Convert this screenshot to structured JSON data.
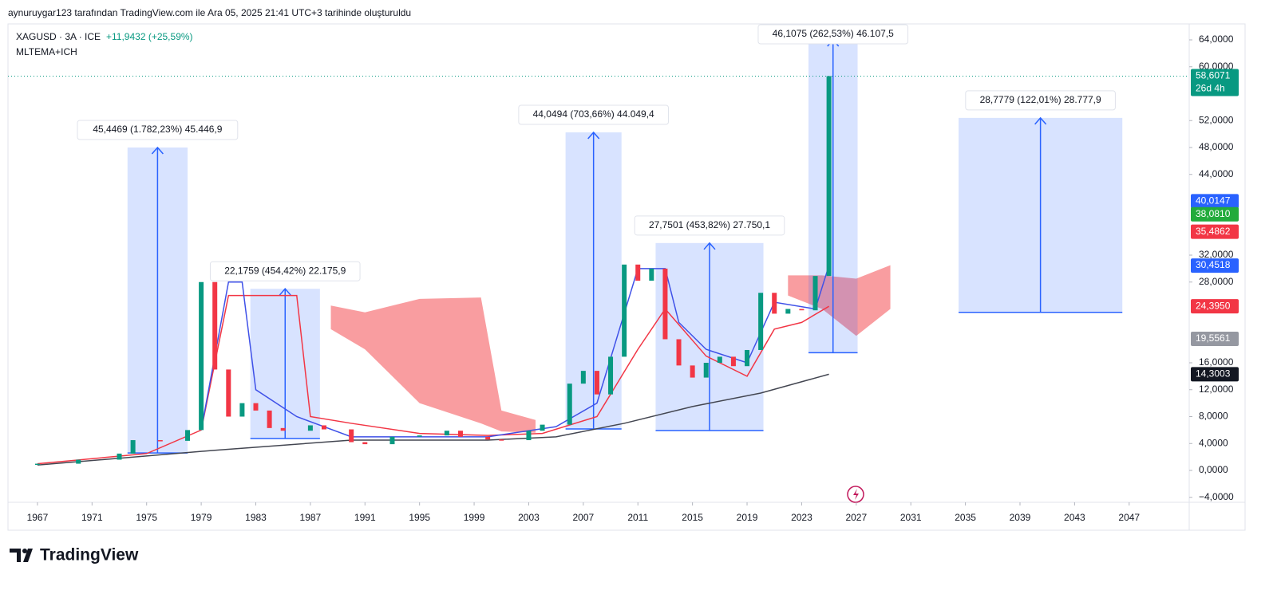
{
  "header": {
    "caption": "aynuruygar123 tarafından TradingView.com ile Ara 05, 2025 21:41 UTC+3 tarihinde oluşturuldu",
    "symbol": "XAGUSD · 3A · ICE",
    "change": "+11,9432 (+25,59%)",
    "indicator": "MLTEMA+ICH",
    "logo": "TradingView"
  },
  "chart_data": {
    "type": "candlestick",
    "x": [
      1967,
      1970,
      1973,
      1974,
      1976,
      1978,
      1979,
      1980,
      1981,
      1982,
      1983,
      1984,
      1985,
      1987,
      1988,
      1990,
      1991,
      1993,
      1995,
      1997,
      1998,
      2000,
      2001,
      2003,
      2004,
      2006,
      2007,
      2008,
      2009,
      2010,
      2011,
      2012,
      2013,
      2014,
      2015,
      2016,
      2017,
      2018,
      2019,
      2020,
      2021,
      2022,
      2023,
      2024,
      2025
    ],
    "values": [
      1.0,
      1.6,
      2.5,
      4.5,
      4.4,
      6.0,
      28.0,
      15.0,
      8.0,
      10.0,
      8.9,
      6.3,
      5.9,
      6.7,
      6.1,
      4.2,
      3.9,
      5.0,
      5.2,
      5.9,
      5.0,
      4.6,
      4.5,
      5.9,
      6.8,
      12.9,
      14.8,
      11.3,
      16.9,
      30.6,
      28.2,
      30.0,
      19.5,
      15.6,
      13.8,
      16.0,
      16.9,
      15.5,
      17.9,
      26.4,
      23.3,
      24.0,
      23.8,
      28.9,
      58.6071
    ],
    "up_color": "#089981",
    "down_color": "#f23645",
    "xlim": [
      1964.84,
      2051.4
    ],
    "ylim": [
      -4.74,
      66.37
    ],
    "xticks": [
      1967,
      1971,
      1975,
      1979,
      1983,
      1987,
      1991,
      1995,
      1999,
      2003,
      2007,
      2011,
      2015,
      2019,
      2023,
      2027,
      2031,
      2035,
      2039,
      2043,
      2047
    ],
    "yticks": [
      {
        "value": -4,
        "label": "−4,0000"
      },
      {
        "value": 0,
        "label": "0,0000"
      },
      {
        "value": 4,
        "label": "4,0000"
      },
      {
        "value": 8,
        "label": "8,0000"
      },
      {
        "value": 12,
        "label": "12,0000"
      },
      {
        "value": 16,
        "label": "16,0000"
      },
      {
        "value": 28,
        "label": "28,0000"
      },
      {
        "value": 32,
        "label": "32,0000"
      },
      {
        "value": 44,
        "label": "44,0000"
      },
      {
        "value": 48,
        "label": "48,0000"
      },
      {
        "value": 52,
        "label": "52,0000"
      },
      {
        "value": 60,
        "label": "60,0000"
      },
      {
        "value": 64,
        "label": "64,0000"
      }
    ],
    "overlays": [
      {
        "color": "#f23645",
        "x": [
          1967,
          1975,
          1979,
          1981,
          1984,
          1986,
          1987,
          1990,
          1995,
          2000,
          2004,
          2008,
          2011,
          2013,
          2016,
          2019,
          2021,
          2023,
          2025
        ],
        "values": [
          1.0,
          2.5,
          6.0,
          26.0,
          26.0,
          26.0,
          8.0,
          7.0,
          5.5,
          5.2,
          5.5,
          8.0,
          18.0,
          24.0,
          17.0,
          14.0,
          21.0,
          22.0,
          24.395
        ]
      },
      {
        "color": "#3f51e8",
        "x": [
          1979,
          1981,
          1982,
          1983,
          1986,
          1990,
          2000,
          2005,
          2008,
          2011,
          2013,
          2014,
          2016,
          2019,
          2021,
          2024,
          2025
        ],
        "values": [
          6.0,
          28.0,
          28.0,
          12.0,
          8.0,
          5.0,
          5.0,
          6.5,
          10.0,
          30.0,
          30.0,
          22.0,
          18.0,
          16.0,
          25.0,
          24.0,
          30.4518
        ]
      },
      {
        "color": "#434651",
        "x": [
          1967,
          1980,
          1990,
          2000,
          2005,
          2010,
          2015,
          2020,
          2025
        ],
        "values": [
          0.8,
          3.0,
          4.5,
          4.5,
          5.0,
          7.0,
          9.5,
          11.5,
          14.3003
        ]
      }
    ],
    "clouds": [
      {
        "color": "#f77c80",
        "x": [
          1988.5,
          1991,
          1995,
          1999.5,
          2001,
          2003.5
        ],
        "upper": [
          24.5,
          23.5,
          25.5,
          25.7,
          8.9,
          7.5
        ],
        "lower": [
          21.0,
          18.0,
          10.0,
          7.0,
          5.8,
          5.6
        ]
      },
      {
        "color": "#f77c80",
        "x": [
          2022,
          2024.5,
          2027,
          2029.5
        ],
        "upper": [
          29.0,
          29.0,
          28.5,
          30.5
        ],
        "lower": [
          26.0,
          24.0,
          20.0,
          24.0
        ]
      }
    ],
    "measures": [
      {
        "label": "45,4469 (1.782,23%) 45.446,9",
        "x": [
          1973.6,
          1978.0
        ],
        "y": [
          2.6,
          48.0
        ]
      },
      {
        "label": "22,1759 (454,42%) 22.175,9",
        "x": [
          1982.6,
          1987.7
        ],
        "y": [
          4.74,
          27.0
        ]
      },
      {
        "label": "44,0494 (703,66%) 44.049,4",
        "x": [
          2005.7,
          2009.8
        ],
        "y": [
          6.16,
          50.25
        ]
      },
      {
        "label": "27,7501 (453,82%) 27.750,1",
        "x": [
          2012.3,
          2020.2
        ],
        "y": [
          5.93,
          33.8
        ]
      },
      {
        "label": "46,1075 (262,53%) 46.107,5",
        "x": [
          2023.5,
          2027.1
        ],
        "y": [
          17.5,
          64.0
        ]
      },
      {
        "label": "28,7779 (122,01%) 28.777,9",
        "x": [
          2034.5,
          2046.5
        ],
        "y": [
          23.5,
          52.4
        ]
      }
    ],
    "price_tags": [
      {
        "value": 58.6071,
        "label": "58,6071",
        "color": "#089981"
      },
      {
        "value": 40.0147,
        "label": "40,0147",
        "color": "#2962ff"
      },
      {
        "value": 38.081,
        "label": "38,0810",
        "color": "#22ab3c"
      },
      {
        "value": 35.4862,
        "label": "35,4862",
        "color": "#f23645"
      },
      {
        "value": 30.4518,
        "label": "30,4518",
        "color": "#2962ff"
      },
      {
        "value": 24.395,
        "label": "24,3950",
        "color": "#f23645"
      },
      {
        "value": 19.5561,
        "label": "19,5561",
        "color": "#9598a1"
      },
      {
        "value": 14.3003,
        "label": "14,3003",
        "color": "#131722"
      }
    ],
    "countdown": "26d 4h"
  }
}
